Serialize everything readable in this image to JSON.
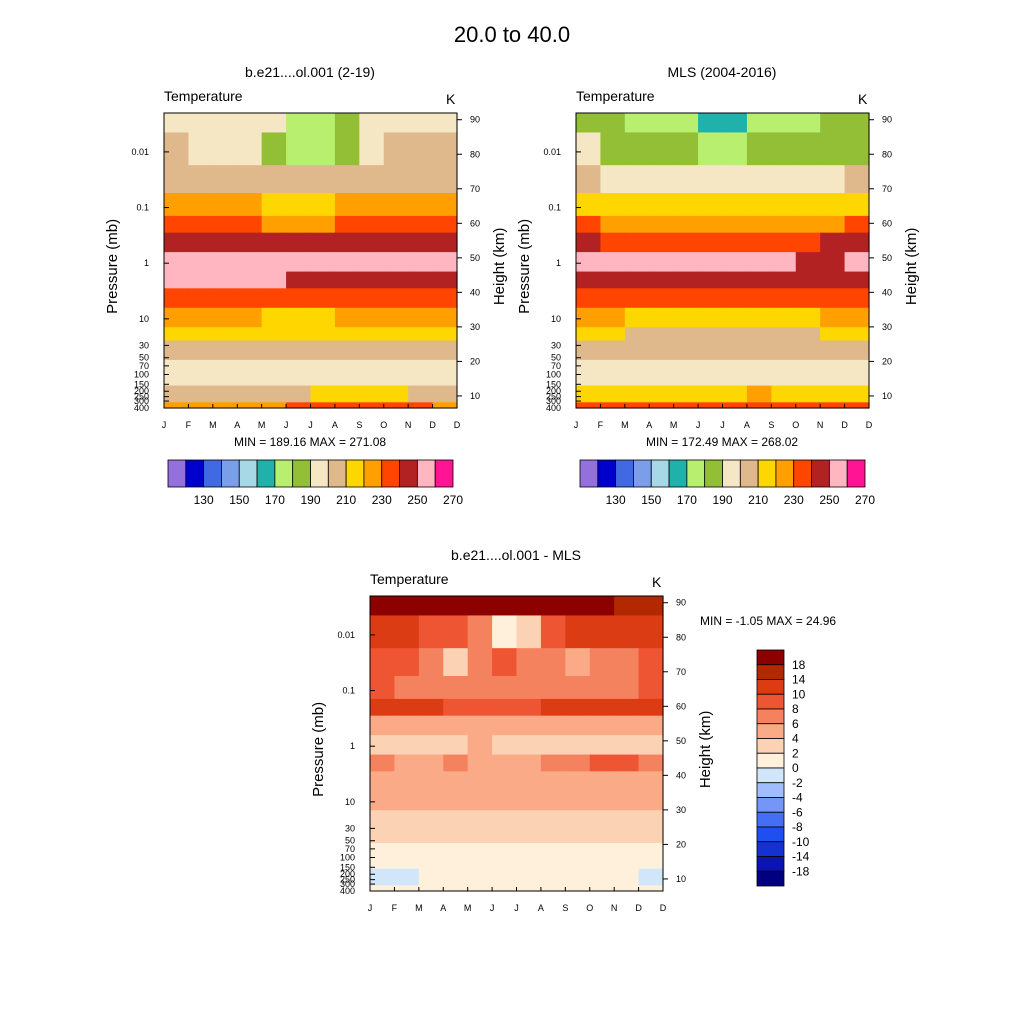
{
  "figure": {
    "title": "20.0 to  40.0"
  },
  "colors": {
    "absolute": [
      "#9370db",
      "#0000cd",
      "#4169e1",
      "#7b9eeb",
      "#a6d8e6",
      "#20b2aa",
      "#b9ef6e",
      "#93bf36",
      "#f5e6c4",
      "#dfb98c",
      "#ffd700",
      "#ff9f00",
      "#ff4500",
      "#b22222",
      "#ffb6c1",
      "#ff1493"
    ],
    "difference": [
      "#000080",
      "#0a14b4",
      "#1432d2",
      "#1e50f0",
      "#466ef5",
      "#7396f8",
      "#a0beff",
      "#d2e6fa",
      "#fff0dc",
      "#fcd2b4",
      "#faaa87",
      "#f5825f",
      "#ee5532",
      "#dc3c14",
      "#b42800",
      "#8c0000"
    ]
  },
  "axes": {
    "pressure_ticks": [
      "0.01",
      "0.1",
      "1",
      "10",
      "30",
      "50",
      "70",
      "100",
      "150",
      "200",
      "250",
      "300",
      "400"
    ],
    "height_ticks": [
      "90",
      "80",
      "70",
      "60",
      "50",
      "40",
      "30",
      "20",
      "10"
    ],
    "month_ticks": [
      "J",
      "F",
      "M",
      "A",
      "M",
      "J",
      "J",
      "A",
      "S",
      "O",
      "N",
      "D"
    ],
    "ylabel_left": "Pressure (mb)",
    "ylabel_right": "Height (km)"
  },
  "panels": [
    {
      "title": "b.e21....ol.001 (2-19)",
      "field": "Temperature",
      "units": "K",
      "stats": "MIN = 189.16  MAX = 271.08"
    },
    {
      "title": "MLS (2004-2016)",
      "field": "Temperature",
      "units": "K",
      "stats": "MIN = 172.49  MAX = 268.02"
    },
    {
      "title": "b.e21....ol.001 - MLS",
      "field": "Temperature",
      "units": "K",
      "stats": "MIN =  -1.05  MAX =  24.96"
    }
  ],
  "colorbars": {
    "absolute_labels": [
      "130",
      "150",
      "170",
      "190",
      "210",
      "230",
      "250",
      "270"
    ],
    "difference_labels": [
      "18",
      "14",
      "10",
      "8",
      "6",
      "4",
      "2",
      "0",
      "-2",
      "-4",
      "-6",
      "-8",
      "-10",
      "-14",
      "-18"
    ]
  },
  "chart_data": [
    {
      "type": "heatmap",
      "title": "b.e21....ol.001 (2-19)",
      "x": [
        "J",
        "F",
        "M",
        "A",
        "M",
        "J",
        "J",
        "A",
        "S",
        "O",
        "N",
        "D"
      ],
      "y_pressure_mb": [
        0.002,
        0.01,
        0.03,
        0.1,
        0.2,
        0.4,
        1,
        2,
        4,
        10,
        20,
        30,
        100,
        250,
        400
      ],
      "levels": [
        130,
        140,
        150,
        160,
        170,
        180,
        190,
        200,
        210,
        220,
        230,
        240,
        250,
        260,
        270
      ],
      "values": [
        [
          205,
          205,
          205,
          208,
          200,
          185,
          185,
          195,
          205,
          208,
          205,
          205
        ],
        [
          210,
          208,
          205,
          200,
          190,
          185,
          188,
          195,
          205,
          212,
          212,
          210
        ],
        [
          218,
          218,
          216,
          214,
          213,
          213,
          213,
          214,
          215,
          216,
          217,
          218
        ],
        [
          235,
          234,
          232,
          230,
          229,
          229,
          229,
          230,
          232,
          234,
          235,
          235
        ],
        [
          245,
          244,
          242,
          240,
          239,
          239,
          239,
          240,
          242,
          244,
          245,
          245
        ],
        [
          255,
          254,
          253,
          251,
          250,
          250,
          250,
          251,
          253,
          254,
          255,
          255
        ],
        [
          263,
          264,
          265,
          266,
          267,
          266,
          264,
          262,
          261,
          260,
          261,
          262
        ],
        [
          260,
          260,
          261,
          261,
          260,
          258,
          256,
          255,
          255,
          255,
          256,
          258
        ],
        [
          248,
          248,
          247,
          246,
          244,
          243,
          243,
          244,
          245,
          246,
          247,
          248
        ],
        [
          232,
          232,
          231,
          230,
          229,
          229,
          229,
          230,
          230,
          231,
          232,
          232
        ],
        [
          222,
          222,
          221,
          221,
          221,
          221,
          221,
          221,
          221,
          222,
          222,
          222
        ],
        [
          215,
          215,
          214,
          214,
          214,
          214,
          214,
          214,
          214,
          215,
          215,
          215
        ],
        [
          205,
          205,
          204,
          204,
          205,
          205,
          206,
          206,
          205,
          205,
          205,
          205
        ],
        [
          216,
          215,
          214,
          214,
          215,
          218,
          222,
          224,
          222,
          220,
          218,
          216
        ],
        [
          238,
          237,
          236,
          236,
          237,
          240,
          244,
          246,
          244,
          242,
          240,
          238
        ]
      ],
      "ylabel": "Pressure (mb)",
      "y2label": "Height (km)",
      "min": 189.16,
      "max": 271.08
    },
    {
      "type": "heatmap",
      "title": "MLS (2004-2016)",
      "x": [
        "J",
        "F",
        "M",
        "A",
        "M",
        "J",
        "J",
        "A",
        "S",
        "O",
        "N",
        "D"
      ],
      "y_pressure_mb": [
        0.002,
        0.01,
        0.03,
        0.1,
        0.2,
        0.4,
        1,
        2,
        4,
        10,
        20,
        30,
        100,
        250,
        400
      ],
      "levels": [
        130,
        140,
        150,
        160,
        170,
        180,
        190,
        200,
        210,
        220,
        230,
        240,
        250,
        260,
        270
      ],
      "values": [
        [
          192,
          190,
          188,
          186,
          182,
          176,
          176,
          180,
          186,
          188,
          190,
          192
        ],
        [
          200,
          198,
          196,
          193,
          190,
          188,
          188,
          190,
          193,
          195,
          196,
          198
        ],
        [
          210,
          209,
          207,
          206,
          205,
          205,
          205,
          205,
          206,
          207,
          208,
          210
        ],
        [
          228,
          227,
          226,
          225,
          224,
          224,
          224,
          224,
          225,
          226,
          227,
          228
        ],
        [
          240,
          239,
          238,
          237,
          236,
          236,
          236,
          236,
          237,
          238,
          239,
          240
        ],
        [
          250,
          249,
          248,
          247,
          246,
          246,
          246,
          247,
          248,
          249,
          250,
          250
        ],
        [
          260,
          261,
          262,
          264,
          266,
          265,
          263,
          261,
          260,
          259,
          259,
          260
        ],
        [
          258,
          258,
          258,
          257,
          255,
          254,
          254,
          254,
          255,
          256,
          257,
          258
        ],
        [
          245,
          245,
          244,
          243,
          241,
          240,
          240,
          241,
          242,
          243,
          244,
          245
        ],
        [
          230,
          230,
          229,
          228,
          227,
          227,
          227,
          228,
          228,
          229,
          230,
          230
        ],
        [
          220,
          220,
          219,
          219,
          218,
          218,
          218,
          218,
          219,
          219,
          220,
          220
        ],
        [
          213,
          213,
          212,
          212,
          212,
          212,
          212,
          212,
          212,
          213,
          213,
          213
        ],
        [
          205,
          205,
          205,
          205,
          205,
          205,
          205,
          205,
          205,
          204,
          205,
          205
        ],
        [
          222,
          222,
          222,
          223,
          224,
          226,
          228,
          230,
          228,
          226,
          224,
          222
        ],
        [
          240,
          240,
          240,
          241,
          242,
          244,
          246,
          248,
          246,
          244,
          242,
          240
        ]
      ],
      "ylabel": "Pressure (mb)",
      "y2label": "Height (km)",
      "min": 172.49,
      "max": 268.02
    },
    {
      "type": "heatmap",
      "title": "b.e21....ol.001 - MLS",
      "x": [
        "J",
        "F",
        "M",
        "A",
        "M",
        "J",
        "J",
        "A",
        "S",
        "O",
        "N",
        "D"
      ],
      "y_pressure_mb": [
        0.002,
        0.01,
        0.03,
        0.1,
        0.2,
        0.4,
        1,
        2,
        4,
        10,
        20,
        30,
        100,
        250,
        400
      ],
      "levels": [
        -18,
        -14,
        -10,
        -8,
        -6,
        -4,
        -2,
        0,
        2,
        4,
        6,
        8,
        10,
        14,
        18
      ],
      "values": [
        [
          24,
          22,
          20,
          20,
          21,
          19,
          18,
          19,
          21,
          22,
          16,
          14
        ],
        [
          12,
          10,
          9,
          8,
          7,
          1,
          3,
          8,
          11,
          12,
          10,
          11
        ],
        [
          9,
          8,
          7,
          3,
          6,
          8,
          7,
          6,
          5,
          6,
          7,
          9
        ],
        [
          8,
          7,
          7,
          6,
          6,
          7,
          7,
          7,
          6,
          7,
          7,
          8
        ],
        [
          10,
          10,
          10,
          9,
          9,
          8,
          9,
          10,
          10,
          10,
          10,
          10
        ],
        [
          5,
          5,
          4,
          4,
          4,
          4,
          4,
          4,
          5,
          5,
          5,
          5
        ],
        [
          3,
          2,
          2,
          3,
          4,
          3,
          3,
          3,
          3,
          3,
          3,
          3
        ],
        [
          6,
          5,
          5,
          6,
          5,
          5,
          5,
          6,
          7,
          8,
          9,
          7
        ],
        [
          5,
          5,
          5,
          5,
          5,
          5,
          4,
          4,
          5,
          5,
          5,
          5
        ],
        [
          4,
          4,
          4,
          4,
          4,
          4,
          4,
          4,
          4,
          4,
          4,
          4
        ],
        [
          3,
          3,
          3,
          3,
          3,
          3,
          3,
          3,
          3,
          3,
          3,
          3
        ],
        [
          2,
          2,
          2,
          2,
          2,
          2,
          2,
          2,
          2,
          2,
          2,
          2
        ],
        [
          1,
          1,
          1,
          1,
          1,
          1,
          1,
          1,
          1,
          1,
          1,
          1
        ],
        [
          -1,
          -1,
          0,
          0,
          0,
          0,
          1,
          1,
          1,
          1,
          0,
          -1
        ],
        [
          0,
          0,
          0,
          0,
          0,
          0,
          0,
          0,
          0,
          0,
          0,
          0
        ]
      ],
      "ylabel": "Pressure (mb)",
      "y2label": "Height (km)",
      "min": -1.05,
      "max": 24.96
    }
  ]
}
